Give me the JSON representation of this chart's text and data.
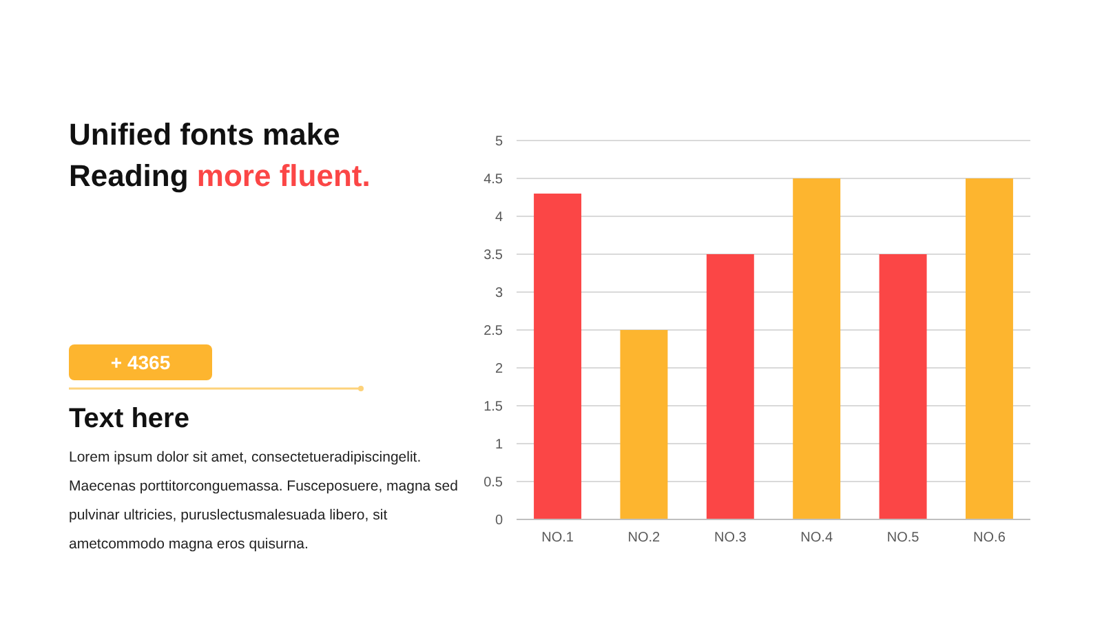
{
  "chart_data": {
    "type": "bar",
    "title": "Unified fonts make Reading more fluent.",
    "annotations": [
      "+ 4365",
      "Text here",
      "Lorem ipsum dolor sit amet, consectetueradipiscingelit. Maecenas porttitorconguemassa. Fusceposuere, magna sed pulvinar ultricies, puruslectusmalesuada libero, sit ametcommodo magna eros quisurna."
    ],
    "categories": [
      "NO.1",
      "NO.2",
      "NO.3",
      "NO.4",
      "NO.5",
      "NO.6"
    ],
    "values": [
      4.3,
      2.5,
      3.5,
      4.5,
      3.5,
      4.5
    ],
    "colors": [
      "#fb4646",
      "#fdb52f",
      "#fb4646",
      "#fdb52f",
      "#fb4646",
      "#fdb52f"
    ],
    "ylim": [
      0,
      5
    ],
    "yticks": [
      0,
      0.5,
      1,
      1.5,
      2,
      2.5,
      3,
      3.5,
      4,
      4.5,
      5
    ],
    "grid": "y"
  }
}
